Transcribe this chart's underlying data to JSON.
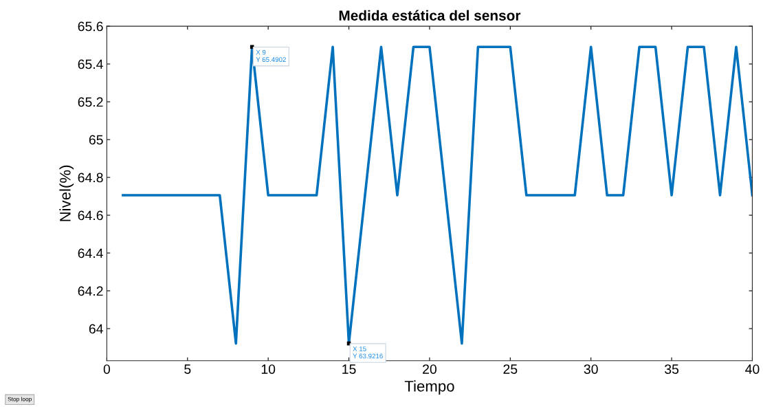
{
  "chart_data": {
    "type": "line",
    "title": "Medida estática del sensor",
    "xlabel": "Tiempo",
    "ylabel": "Nivel(%)",
    "x": [
      1,
      2,
      3,
      4,
      5,
      6,
      7,
      8,
      9,
      10,
      11,
      12,
      13,
      14,
      15,
      16,
      17,
      18,
      19,
      20,
      21,
      22,
      23,
      24,
      25,
      26,
      27,
      28,
      29,
      30,
      31,
      32,
      33,
      34,
      35,
      36,
      37,
      38,
      39,
      40
    ],
    "series": [
      {
        "color": "#0072bd",
        "values": [
          64.7059,
          64.7059,
          64.7059,
          64.7059,
          64.7059,
          64.7059,
          64.7059,
          63.9216,
          65.4902,
          64.7059,
          64.7059,
          64.7059,
          64.7059,
          65.4902,
          63.9216,
          64.7059,
          65.4902,
          64.7059,
          65.4902,
          65.4902,
          64.7059,
          63.9216,
          65.4902,
          65.4902,
          65.4902,
          64.7059,
          64.7059,
          64.7059,
          64.7059,
          65.4902,
          64.7059,
          64.7059,
          65.4902,
          65.4902,
          64.7059,
          65.4902,
          65.4902,
          64.7059,
          65.4902,
          64.7059
        ]
      }
    ],
    "xlim": [
      0,
      40
    ],
    "xticks": [
      0,
      5,
      10,
      15,
      20,
      25,
      30,
      35,
      40
    ],
    "ylim": [
      63.83,
      65.6
    ],
    "yticks": [
      {
        "value": 64,
        "label": "64"
      },
      64.2,
      64.4,
      64.6,
      64.8,
      {
        "value": 65,
        "label": "65"
      },
      65.2,
      65.4,
      65.6
    ],
    "grid": false,
    "legend": false,
    "marker": "none",
    "line_style": "solid",
    "annotations": [
      {
        "text": "X 9\nY 65.4902",
        "x": 9,
        "y": 65.4902
      },
      {
        "text": "X 15\nY 63.9216",
        "x": 15,
        "y": 63.9216
      },
      "Stop loop"
    ]
  }
}
